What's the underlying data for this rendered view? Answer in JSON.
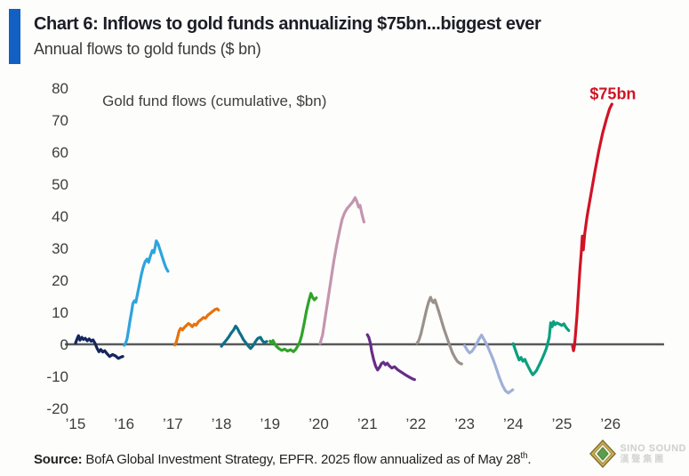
{
  "header": {
    "title": "Chart 6: Inflows to gold funds annualizing $75bn...biggest ever",
    "subtitle": "Annual flows to gold funds ($ bn)",
    "accent_color": "#1260c4"
  },
  "chart_data": {
    "type": "line",
    "title": "Gold fund flows (cumulative, $bn)",
    "ylabel": "",
    "xlabel": "",
    "ylim": [
      -20,
      80
    ],
    "yticks": [
      80,
      70,
      60,
      50,
      40,
      30,
      20,
      10,
      0,
      -10,
      -20
    ],
    "x_years": [
      2015,
      2026
    ],
    "xticks": [
      "’15",
      "’16",
      "’17",
      "’18",
      "’19",
      "’20",
      "’21",
      "’22",
      "’23",
      "’24",
      "’25",
      "’26"
    ],
    "grid": "none",
    "zero_axis_color": "#58595b",
    "legend_position": "none",
    "annotations": [
      {
        "text": "Gold fund flows (cumulative, $bn)",
        "x": 2015.55,
        "y": 74.5,
        "anchor": "start",
        "color": "#3f3f3f",
        "size": 17,
        "weight": "normal"
      },
      {
        "text": "$75bn",
        "x": 2026.05,
        "y": 76.5,
        "anchor": "middle",
        "color": "#cf1425",
        "size": 18,
        "weight": "bold"
      }
    ],
    "series": [
      {
        "name": "2015",
        "color": "#14265c",
        "points": [
          [
            2015.0,
            0.4
          ],
          [
            2015.03,
            1.6
          ],
          [
            2015.06,
            2.7
          ],
          [
            2015.09,
            1.3
          ],
          [
            2015.13,
            2.2
          ],
          [
            2015.16,
            1.5
          ],
          [
            2015.2,
            1.9
          ],
          [
            2015.24,
            1.1
          ],
          [
            2015.28,
            1.7
          ],
          [
            2015.32,
            1.0
          ],
          [
            2015.36,
            1.4
          ],
          [
            2015.4,
            0.3
          ],
          [
            2015.44,
            -1.2
          ],
          [
            2015.48,
            -2.3
          ],
          [
            2015.52,
            -1.6
          ],
          [
            2015.56,
            -2.4
          ],
          [
            2015.6,
            -2.0
          ],
          [
            2015.64,
            -2.8
          ],
          [
            2015.7,
            -3.8
          ],
          [
            2015.76,
            -3.2
          ],
          [
            2015.82,
            -3.6
          ],
          [
            2015.88,
            -4.4
          ],
          [
            2015.93,
            -4.0
          ],
          [
            2015.97,
            -3.8
          ]
        ]
      },
      {
        "name": "2016",
        "color": "#2da4dd",
        "points": [
          [
            2016.0,
            -0.3
          ],
          [
            2016.03,
            0.3
          ],
          [
            2016.06,
            1.8
          ],
          [
            2016.09,
            4.5
          ],
          [
            2016.12,
            7.5
          ],
          [
            2016.15,
            10.0
          ],
          [
            2016.18,
            12.8
          ],
          [
            2016.21,
            13.6
          ],
          [
            2016.24,
            13.1
          ],
          [
            2016.27,
            15.5
          ],
          [
            2016.31,
            18.5
          ],
          [
            2016.35,
            21.5
          ],
          [
            2016.39,
            24.0
          ],
          [
            2016.43,
            25.8
          ],
          [
            2016.47,
            26.6
          ],
          [
            2016.5,
            25.6
          ],
          [
            2016.54,
            27.6
          ],
          [
            2016.58,
            29.3
          ],
          [
            2016.61,
            28.6
          ],
          [
            2016.64,
            30.6
          ],
          [
            2016.66,
            32.3
          ],
          [
            2016.7,
            31.2
          ],
          [
            2016.74,
            29.3
          ],
          [
            2016.78,
            27.4
          ],
          [
            2016.82,
            25.5
          ],
          [
            2016.86,
            23.9
          ],
          [
            2016.9,
            22.8
          ]
        ]
      },
      {
        "name": "2017",
        "color": "#e7720d",
        "points": [
          [
            2017.04,
            -0.2
          ],
          [
            2017.07,
            0.6
          ],
          [
            2017.1,
            2.4
          ],
          [
            2017.13,
            4.2
          ],
          [
            2017.16,
            5.0
          ],
          [
            2017.2,
            4.5
          ],
          [
            2017.24,
            5.3
          ],
          [
            2017.28,
            5.9
          ],
          [
            2017.32,
            6.5
          ],
          [
            2017.36,
            6.1
          ],
          [
            2017.4,
            5.5
          ],
          [
            2017.44,
            6.3
          ],
          [
            2017.48,
            6.0
          ],
          [
            2017.53,
            7.1
          ],
          [
            2017.58,
            7.7
          ],
          [
            2017.63,
            8.4
          ],
          [
            2017.67,
            8.1
          ],
          [
            2017.72,
            9.1
          ],
          [
            2017.77,
            9.7
          ],
          [
            2017.82,
            10.3
          ],
          [
            2017.87,
            10.9
          ],
          [
            2017.91,
            11.1
          ],
          [
            2017.94,
            10.7
          ]
        ]
      },
      {
        "name": "2018",
        "color": "#0f7086",
        "points": [
          [
            2018.0,
            -0.6
          ],
          [
            2018.05,
            0.4
          ],
          [
            2018.1,
            1.3
          ],
          [
            2018.15,
            2.3
          ],
          [
            2018.2,
            3.5
          ],
          [
            2018.25,
            4.5
          ],
          [
            2018.29,
            5.7
          ],
          [
            2018.33,
            4.9
          ],
          [
            2018.37,
            3.7
          ],
          [
            2018.41,
            2.7
          ],
          [
            2018.45,
            1.5
          ],
          [
            2018.5,
            0.5
          ],
          [
            2018.55,
            -0.5
          ],
          [
            2018.6,
            -1.3
          ],
          [
            2018.65,
            -0.4
          ],
          [
            2018.7,
            0.9
          ],
          [
            2018.75,
            1.9
          ],
          [
            2018.8,
            2.2
          ],
          [
            2018.84,
            1.2
          ],
          [
            2018.88,
            0.5
          ],
          [
            2018.93,
            0.9
          ]
        ]
      },
      {
        "name": "2019",
        "color": "#2fa32a",
        "points": [
          [
            2019.0,
            1.0
          ],
          [
            2019.03,
            0.3
          ],
          [
            2019.06,
            1.2
          ],
          [
            2019.09,
            0.3
          ],
          [
            2019.13,
            -0.6
          ],
          [
            2019.18,
            -1.3
          ],
          [
            2019.24,
            -1.9
          ],
          [
            2019.3,
            -1.5
          ],
          [
            2019.36,
            -2.1
          ],
          [
            2019.42,
            -1.7
          ],
          [
            2019.48,
            -2.3
          ],
          [
            2019.53,
            -1.5
          ],
          [
            2019.57,
            -0.5
          ],
          [
            2019.61,
            0.7
          ],
          [
            2019.65,
            2.8
          ],
          [
            2019.7,
            6.5
          ],
          [
            2019.75,
            10.5
          ],
          [
            2019.8,
            13.8
          ],
          [
            2019.84,
            15.9
          ],
          [
            2019.88,
            14.5
          ],
          [
            2019.91,
            13.9
          ],
          [
            2019.95,
            14.5
          ]
        ]
      },
      {
        "name": "2020",
        "color": "#c495ae",
        "points": [
          [
            2020.03,
            0.3
          ],
          [
            2020.08,
            3.0
          ],
          [
            2020.13,
            8.0
          ],
          [
            2020.19,
            14.0
          ],
          [
            2020.25,
            20.0
          ],
          [
            2020.31,
            26.0
          ],
          [
            2020.37,
            31.0
          ],
          [
            2020.43,
            35.5
          ],
          [
            2020.48,
            39.0
          ],
          [
            2020.53,
            41.0
          ],
          [
            2020.58,
            42.3
          ],
          [
            2020.64,
            43.4
          ],
          [
            2020.7,
            44.5
          ],
          [
            2020.75,
            45.8
          ],
          [
            2020.79,
            44.4
          ],
          [
            2020.82,
            42.8
          ],
          [
            2020.85,
            43.4
          ],
          [
            2020.89,
            40.5
          ],
          [
            2020.93,
            38.2
          ]
        ]
      },
      {
        "name": "2021",
        "color": "#662d87",
        "points": [
          [
            2021.0,
            3.0
          ],
          [
            2021.03,
            2.2
          ],
          [
            2021.06,
            0.5
          ],
          [
            2021.09,
            -2.2
          ],
          [
            2021.13,
            -4.8
          ],
          [
            2021.17,
            -6.8
          ],
          [
            2021.21,
            -8.0
          ],
          [
            2021.25,
            -7.2
          ],
          [
            2021.29,
            -6.0
          ],
          [
            2021.33,
            -5.6
          ],
          [
            2021.37,
            -6.4
          ],
          [
            2021.41,
            -5.9
          ],
          [
            2021.45,
            -6.7
          ],
          [
            2021.5,
            -7.4
          ],
          [
            2021.56,
            -7.0
          ],
          [
            2021.62,
            -7.9
          ],
          [
            2021.7,
            -8.7
          ],
          [
            2021.78,
            -9.5
          ],
          [
            2021.86,
            -10.2
          ],
          [
            2021.93,
            -10.8
          ],
          [
            2021.97,
            -11.0
          ]
        ]
      },
      {
        "name": "2022",
        "color": "#9a918b",
        "points": [
          [
            2022.02,
            0.3
          ],
          [
            2022.06,
            1.3
          ],
          [
            2022.1,
            3.2
          ],
          [
            2022.14,
            5.8
          ],
          [
            2022.18,
            8.4
          ],
          [
            2022.22,
            11.0
          ],
          [
            2022.26,
            13.2
          ],
          [
            2022.3,
            14.7
          ],
          [
            2022.33,
            13.5
          ],
          [
            2022.36,
            13.0
          ],
          [
            2022.39,
            13.9
          ],
          [
            2022.42,
            12.5
          ],
          [
            2022.46,
            10.6
          ],
          [
            2022.5,
            8.6
          ],
          [
            2022.54,
            6.6
          ],
          [
            2022.58,
            4.6
          ],
          [
            2022.62,
            2.9
          ],
          [
            2022.66,
            1.1
          ],
          [
            2022.7,
            -0.6
          ],
          [
            2022.75,
            -2.6
          ],
          [
            2022.8,
            -4.1
          ],
          [
            2022.85,
            -5.3
          ],
          [
            2022.9,
            -5.9
          ],
          [
            2022.94,
            -6.1
          ]
        ]
      },
      {
        "name": "2023",
        "color": "#9fb0d8",
        "points": [
          [
            2023.0,
            -0.4
          ],
          [
            2023.05,
            -1.7
          ],
          [
            2023.1,
            -2.7
          ],
          [
            2023.15,
            -2.2
          ],
          [
            2023.2,
            -1.1
          ],
          [
            2023.25,
            0.3
          ],
          [
            2023.3,
            1.7
          ],
          [
            2023.35,
            2.9
          ],
          [
            2023.4,
            1.5
          ],
          [
            2023.44,
            0.4
          ],
          [
            2023.48,
            -0.9
          ],
          [
            2023.52,
            -2.3
          ],
          [
            2023.57,
            -4.1
          ],
          [
            2023.62,
            -6.1
          ],
          [
            2023.67,
            -8.3
          ],
          [
            2023.72,
            -10.6
          ],
          [
            2023.78,
            -12.9
          ],
          [
            2023.84,
            -14.5
          ],
          [
            2023.9,
            -15.2
          ],
          [
            2023.95,
            -14.6
          ],
          [
            2023.99,
            -14.2
          ]
        ]
      },
      {
        "name": "2024",
        "color": "#0aa07e",
        "points": [
          [
            2024.0,
            0.2
          ],
          [
            2024.04,
            -1.6
          ],
          [
            2024.08,
            -3.3
          ],
          [
            2024.12,
            -4.9
          ],
          [
            2024.16,
            -4.1
          ],
          [
            2024.2,
            -5.3
          ],
          [
            2024.24,
            -4.7
          ],
          [
            2024.28,
            -6.1
          ],
          [
            2024.32,
            -7.3
          ],
          [
            2024.36,
            -8.5
          ],
          [
            2024.4,
            -9.5
          ],
          [
            2024.44,
            -8.9
          ],
          [
            2024.48,
            -8.1
          ],
          [
            2024.52,
            -6.9
          ],
          [
            2024.56,
            -5.7
          ],
          [
            2024.6,
            -4.3
          ],
          [
            2024.64,
            -2.9
          ],
          [
            2024.68,
            -1.3
          ],
          [
            2024.71,
            0.3
          ],
          [
            2024.74,
            2.2
          ],
          [
            2024.77,
            6.7
          ],
          [
            2024.8,
            5.5
          ],
          [
            2024.83,
            7.1
          ],
          [
            2024.86,
            6.1
          ],
          [
            2024.9,
            6.7
          ],
          [
            2024.95,
            6.3
          ],
          [
            2025.0,
            5.9
          ],
          [
            2025.04,
            6.4
          ],
          [
            2025.09,
            5.2
          ],
          [
            2025.14,
            4.3
          ]
        ]
      },
      {
        "name": "2025",
        "color": "#cf1425",
        "points": [
          [
            2025.22,
            -0.5
          ],
          [
            2025.24,
            -2.0
          ],
          [
            2025.26,
            -0.5
          ],
          [
            2025.28,
            3.0
          ],
          [
            2025.31,
            9.0
          ],
          [
            2025.34,
            16.0
          ],
          [
            2025.37,
            23.0
          ],
          [
            2025.4,
            29.0
          ],
          [
            2025.42,
            33.8
          ],
          [
            2025.44,
            29.5
          ],
          [
            2025.47,
            34.5
          ],
          [
            2025.52,
            40.0
          ],
          [
            2025.6,
            47.0
          ],
          [
            2025.68,
            54.0
          ],
          [
            2025.76,
            60.5
          ],
          [
            2025.84,
            66.0
          ],
          [
            2025.92,
            70.5
          ],
          [
            2025.98,
            73.5
          ],
          [
            2026.03,
            75.0
          ]
        ]
      }
    ]
  },
  "footer": {
    "source_label": "Source:",
    "source_text": " BofA Global Investment Strategy, EPFR. 2025 flow annualized as of May 28",
    "source_sup": "th",
    "source_period": "."
  },
  "watermark": {
    "line1": "SINO SOUND",
    "line2": "漢聲集團"
  }
}
